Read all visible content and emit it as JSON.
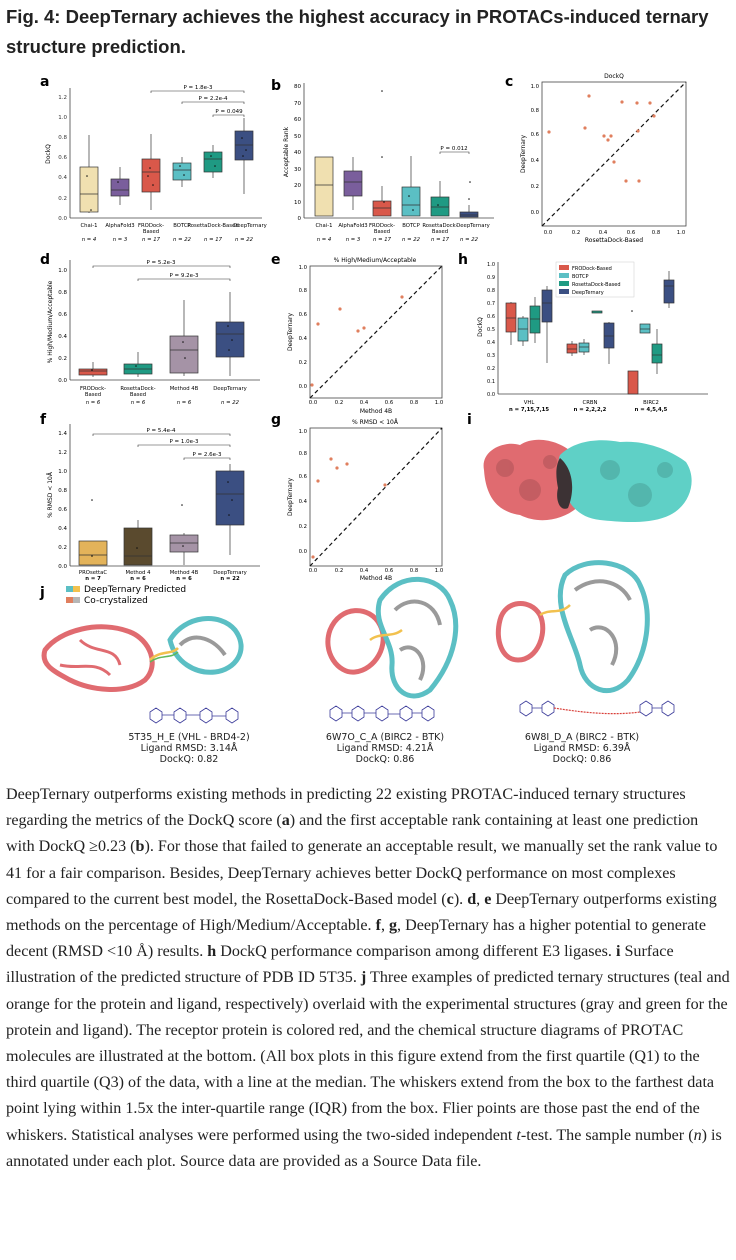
{
  "figure": {
    "title": "Fig. 4: DeepTernary achieves the highest accuracy in PROTACs-induced ternary structure prediction."
  },
  "panels": {
    "a": {
      "letter": "a",
      "ylabel": "DockQ",
      "yticks": [
        "0.0",
        "0.2",
        "0.4",
        "0.6",
        "0.8",
        "1.0",
        "1.2"
      ],
      "categories": [
        "Chai-1",
        "AlphaFold3",
        "FRODock-\nBased",
        "BOTCP",
        "RosettaDock-Based",
        "DeepTernary"
      ],
      "n": [
        "n = 4",
        "n = 3",
        "n = 17",
        "n = 22",
        "n = 17",
        "n = 22"
      ],
      "pvalues": [
        "P = 1.8e-3",
        "P = 2.2e-4",
        "P = 0.049"
      ]
    },
    "b": {
      "letter": "b",
      "ylabel": "Acceptable Rank",
      "yticks": [
        "0",
        "10",
        "20",
        "30",
        "40",
        "50",
        "60",
        "70",
        "80"
      ],
      "categories": [
        "Chai-1",
        "AlphaFold3",
        "FRODock-\nBased",
        "BOTCP",
        "RosettaDock-Based",
        "DeepTernary"
      ],
      "n": [
        "n = 4",
        "n = 3",
        "n = 17",
        "n = 22",
        "n = 17",
        "n = 22"
      ],
      "pvalues": [
        "P = 0.012"
      ]
    },
    "c": {
      "letter": "c",
      "title": "DockQ",
      "xlabel": "RosettaDock-Based",
      "ylabel": "DeepTernary",
      "ticks": [
        "0.0",
        "0.2",
        "0.4",
        "0.6",
        "0.8",
        "1.0"
      ]
    },
    "d": {
      "letter": "d",
      "ylabel": "% High/Medium/Acceptable",
      "yticks": [
        "0.0",
        "0.2",
        "0.4",
        "0.6",
        "0.8",
        "1.0"
      ],
      "categories": [
        "FRODock-\nBased",
        "RosettaDock-\nBased",
        "Method 4B",
        "DeepTernary"
      ],
      "n": [
        "n = 6",
        "n = 6",
        "n = 6",
        "n = 22"
      ],
      "pvalues": [
        "P = 5.2e-3",
        "P = 9.2e-3"
      ]
    },
    "e": {
      "letter": "e",
      "title": "% High/Medium/Acceptable",
      "xlabel": "Method 4B",
      "ylabel": "DeepTernary",
      "ticks": [
        "0.0",
        "0.2",
        "0.4",
        "0.6",
        "0.8",
        "1.0"
      ]
    },
    "f": {
      "letter": "f",
      "ylabel": "% RMSD < 10Å",
      "yticks": [
        "0.0",
        "0.2",
        "0.4",
        "0.6",
        "0.8",
        "1.0",
        "1.2",
        "1.4"
      ],
      "categories": [
        "PROsettaC",
        "Method 4",
        "Method 4B",
        "DeepTernary"
      ],
      "n": [
        "n = 7",
        "n = 6",
        "n = 6",
        "n = 22"
      ],
      "pvalues": [
        "P = 5.4e-4",
        "P = 1.0e-3",
        "P = 2.6e-3"
      ]
    },
    "g": {
      "letter": "g",
      "title": "% RMSD < 10Å",
      "xlabel": "Method 4B",
      "ylabel": "DeepTernary",
      "ticks": [
        "0.0",
        "0.2",
        "0.4",
        "0.6",
        "0.8",
        "1.0"
      ]
    },
    "h": {
      "letter": "h",
      "ylabel": "DockQ",
      "yticks": [
        "0.0",
        "0.1",
        "0.2",
        "0.3",
        "0.4",
        "0.5",
        "0.6",
        "0.7",
        "0.8",
        "0.9",
        "1.0"
      ],
      "legend": [
        "FRODock-Based",
        "BOTCP",
        "RosettaDock-Based",
        "DeepTernary"
      ],
      "groups": [
        "VHL",
        "CRBN",
        "BIRC2"
      ],
      "n": [
        "n = 7,15,7,15",
        "n = 2,2,2,2",
        "n = 4,5,4,5"
      ]
    },
    "i": {
      "letter": "i"
    },
    "j": {
      "letter": "j",
      "legend": [
        "DeepTernary Predicted",
        "Co-crystalized"
      ],
      "examples": [
        {
          "line1": "5T35_H_E (VHL - BRD4-2)",
          "line2": "Ligand RMSD: 3.14Å",
          "line3": "DockQ: 0.82"
        },
        {
          "line1": "6W7O_C_A (BIRC2 - BTK)",
          "line2": "Ligand RMSD: 4.21Å",
          "line3": "DockQ: 0.86"
        },
        {
          "line1": "6W8I_D_A (BIRC2 - BTK)",
          "line2": "Ligand RMSD: 6.39Å",
          "line3": "DockQ: 0.86"
        }
      ]
    }
  },
  "caption": {
    "p1": "DeepTernary outperforms existing methods in predicting 22 existing PROTAC-induced ternary structures regarding the metrics of the DockQ score (",
    "a": "a",
    "p2": ") and the first acceptable rank containing at least one prediction with DockQ ≥0.23 (",
    "b": "b",
    "p3": "). For those that failed to generate an acceptable result, we manually set the rank value to 41 for a fair comparison. Besides, DeepTernary achieves better DockQ performance on most complexes compared to the current best model, the RosettaDock-Based model (",
    "c": "c",
    "p4": "). ",
    "de": "d",
    "comma1": ", ",
    "e": "e",
    "p5": " DeepTernary outperforms existing methods on the percentage of High/Medium/Acceptable. ",
    "f": "f",
    "comma2": ", ",
    "g": "g",
    "p6": ", DeepTernary has a higher potential to generate decent (RMSD <10 Å) results. ",
    "h": "h",
    "p7": " DockQ performance comparison among different E3 ligases. ",
    "i": "i",
    "p8": " Surface illustration of the predicted structure of PDB ID 5T35. ",
    "j": "j",
    "p9": " Three examples of predicted ternary structures (teal and orange for the protein and ligand, respectively) overlaid with the experimental structures (gray and green for the protein and ligand). The receptor protein is colored red, and the chemical structure diagrams of PROTAC molecules are illustrated at the bottom. (All box plots in this figure extend from the first quartile (Q1) to the third quartile (Q3) of the data, with a line at the median. The whiskers extend from the box to the farthest data point lying within 1.5x the inter-quartile range (IQR) from the box. Flier points are those past the end of the whiskers. Statistical analyses were performed using the two-sided independent ",
    "t": "t",
    "p10": "-test. The sample number (",
    "n": "n",
    "p11": ") is annotated under each plot. Source data are provided as a Source Data file."
  },
  "colors": {
    "chai": "#f0e0b0",
    "af3": "#7a5e9c",
    "frodock": "#d9584a",
    "botcp": "#5bbfc4",
    "rosetta": "#1f9a83",
    "deepternary": "#3b4f82",
    "method4b": "#a593a6",
    "prosettac": "#e3b35a",
    "method4": "#5a4a2e",
    "scatter": "#e07f5e"
  }
}
